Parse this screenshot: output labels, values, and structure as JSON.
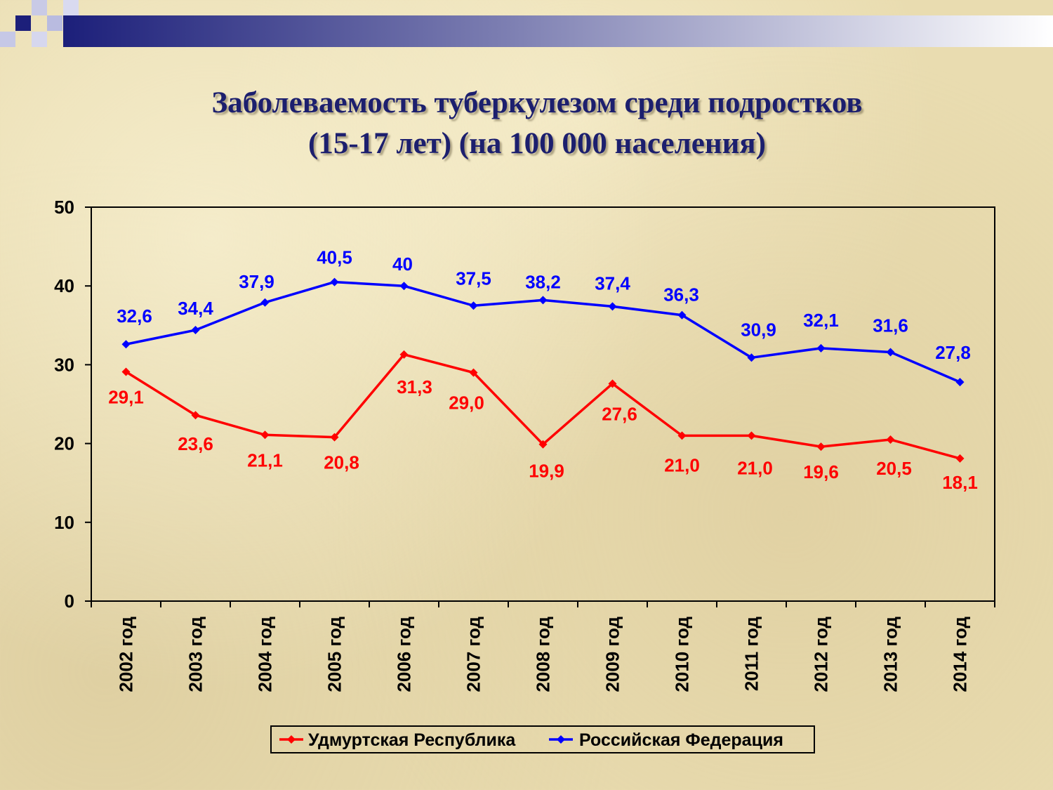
{
  "slide": {
    "title_line1": "Заболеваемость туберкулезом среди подростков",
    "title_line2": "(15-17 лет) (на 100 000 населения)"
  },
  "colors": {
    "background": "#e9dcb0",
    "title": "#1c1f6e",
    "udmurt": "#ff0000",
    "russia": "#0000ff",
    "decor_dark": "#1c1f7a"
  },
  "chart_data": {
    "type": "line",
    "categories": [
      "2002 год",
      "2003 год",
      "2004 год",
      "2005 год",
      "2006 год",
      "2007 год",
      "2008 год",
      "2009 год",
      "2010 год",
      "2011 год",
      "2012 год",
      "2013 год",
      "2014 год"
    ],
    "ylim": [
      0,
      50
    ],
    "yticks": [
      "0",
      "10",
      "20",
      "30",
      "40",
      "50"
    ],
    "grid": false,
    "legend_position": "bottom",
    "series": [
      {
        "name": "Удмуртская Республика",
        "color": "#ff0000",
        "values": [
          29.1,
          23.6,
          21.1,
          20.8,
          31.3,
          29.0,
          19.9,
          27.6,
          21.0,
          21.0,
          19.6,
          20.5,
          18.1
        ],
        "labels": [
          "29,1",
          "23,6",
          "21,1",
          "20,8",
          "31,3",
          "29,0",
          "19,9",
          "27,6",
          "21,0",
          "21,0",
          "19,6",
          "20,5",
          "18,1"
        ]
      },
      {
        "name": "Российская Федерация",
        "color": "#0000ff",
        "values": [
          32.6,
          34.4,
          37.9,
          40.5,
          40,
          37.5,
          38.2,
          37.4,
          36.3,
          30.9,
          32.1,
          31.6,
          27.8
        ],
        "labels": [
          "32,6",
          "34,4",
          "37,9",
          "40,5",
          "40",
          "37,5",
          "38,2",
          "37,4",
          "36,3",
          "30,9",
          "32,1",
          "31,6",
          "27,8"
        ]
      }
    ]
  }
}
